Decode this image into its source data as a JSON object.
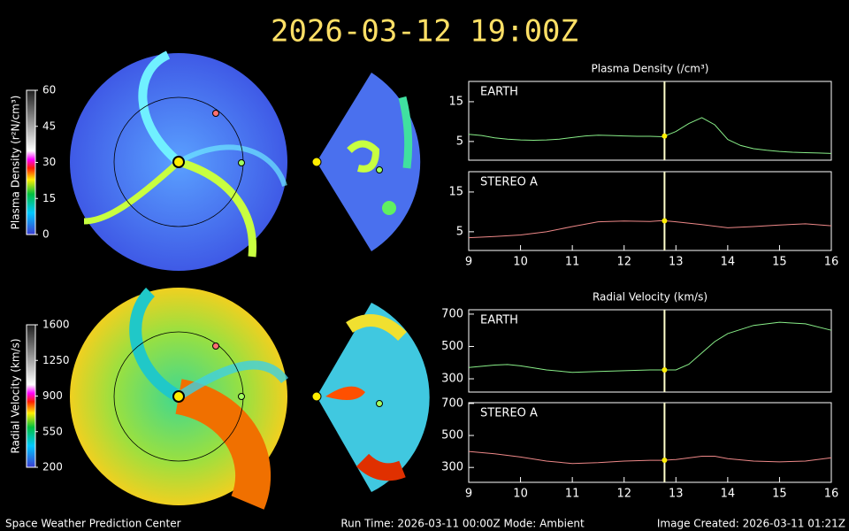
{
  "title": "2026-03-12 19:00Z",
  "footer": {
    "left": "Space Weather Prediction Center",
    "center": "Run Time: 2026-03-11 00:00Z  Mode: Ambient",
    "right": "Image Created: 2026-03-11 01:21Z"
  },
  "colorbars": [
    {
      "label": "Plasma Density (r²N/cm³)",
      "lim": [
        0,
        60
      ],
      "ticks": [
        0,
        15,
        30,
        45,
        60
      ]
    },
    {
      "label": "Radial Velocity (km/s)",
      "lim": [
        200,
        1600
      ],
      "ticks": [
        200,
        550,
        900,
        1250,
        1600
      ]
    }
  ],
  "chart_data": [
    {
      "type": "line",
      "title": "Plasma Density (/cm³)",
      "annotation": "EARTH",
      "color": "#88ee88",
      "x": [
        9,
        9.25,
        9.5,
        9.75,
        10,
        10.25,
        10.5,
        10.75,
        11,
        11.25,
        11.5,
        11.75,
        12,
        12.25,
        12.5,
        12.75,
        13,
        13.25,
        13.5,
        13.75,
        14,
        14.25,
        14.5,
        14.75,
        15,
        15.25,
        15.5,
        15.75,
        16
      ],
      "values": [
        6.8,
        6.5,
        5.9,
        5.6,
        5.4,
        5.3,
        5.4,
        5.6,
        6.0,
        6.4,
        6.6,
        6.5,
        6.4,
        6.3,
        6.3,
        6.2,
        7.5,
        9.5,
        11,
        9.2,
        5.5,
        4,
        3.2,
        2.8,
        2.5,
        2.3,
        2.2,
        2.1,
        2.0
      ],
      "marker_x": 12.78,
      "xlim": [
        9,
        16
      ],
      "ylim": [
        0.3,
        20.1
      ],
      "yticks": [
        5,
        15
      ]
    },
    {
      "type": "line",
      "annotation": "STEREO A",
      "color": "#ee8888",
      "x": [
        9,
        9.5,
        10,
        10.5,
        11,
        11.5,
        12,
        12.5,
        12.75,
        13,
        13.5,
        14,
        14.5,
        15,
        15.5,
        16
      ],
      "values": [
        3.5,
        3.8,
        4.2,
        5,
        6.3,
        7.5,
        7.7,
        7.6,
        7.8,
        7.5,
        6.8,
        6,
        6.3,
        6.7,
        7,
        6.5
      ],
      "marker_x": 12.78,
      "xlim": [
        9,
        16
      ],
      "ylim": [
        0.3,
        20.1
      ],
      "yticks": [
        5,
        15
      ],
      "xticks": [
        9,
        10,
        11,
        12,
        13,
        14,
        15,
        16
      ]
    },
    {
      "type": "line",
      "title": "Radial Velocity (km/s)",
      "annotation": "EARTH",
      "color": "#88ee88",
      "x": [
        9,
        9.5,
        9.75,
        10,
        10.5,
        11,
        11.5,
        12,
        12.5,
        12.75,
        13,
        13.25,
        13.5,
        13.75,
        14,
        14.5,
        15,
        15.5,
        16
      ],
      "values": [
        370,
        385,
        388,
        380,
        355,
        340,
        345,
        350,
        355,
        355,
        355,
        390,
        460,
        530,
        580,
        630,
        650,
        640,
        600
      ],
      "marker_x": 12.78,
      "xlim": [
        9,
        16
      ],
      "ylim": [
        218,
        727
      ],
      "yticks": [
        300,
        500,
        700
      ]
    },
    {
      "type": "line",
      "annotation": "STEREO A",
      "color": "#ee8888",
      "x": [
        9,
        9.5,
        10,
        10.5,
        11,
        11.5,
        12,
        12.5,
        12.75,
        13,
        13.5,
        13.75,
        14,
        14.5,
        15,
        15.5,
        16
      ],
      "values": [
        400,
        385,
        365,
        340,
        325,
        330,
        340,
        345,
        345,
        350,
        370,
        370,
        355,
        340,
        335,
        340,
        360
      ],
      "marker_x": 12.78,
      "xlim": [
        9,
        16
      ],
      "ylim": [
        207,
        705
      ],
      "yticks": [
        300,
        500,
        700
      ],
      "xticks": [
        9,
        10,
        11,
        12,
        13,
        14,
        15,
        16
      ]
    }
  ]
}
